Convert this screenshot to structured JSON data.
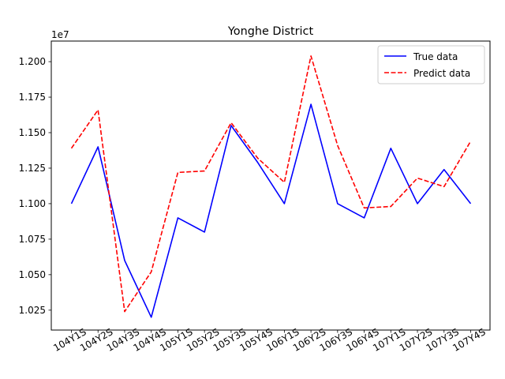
{
  "chart_data": {
    "type": "line",
    "title": "Yonghe District",
    "xlabel": "",
    "ylabel": "",
    "y_offset_label": "1e7",
    "categories": [
      "104Y1S",
      "104Y2S",
      "104Y3S",
      "104Y4S",
      "105Y1S",
      "105Y2S",
      "105Y3S",
      "105Y4S",
      "106Y1S",
      "106Y2S",
      "106Y3S",
      "106Y4S",
      "107Y1S",
      "107Y2S",
      "107Y3S",
      "107Y4S"
    ],
    "ylim": [
      1.011,
      1.2145
    ],
    "yticks": [
      1.025,
      1.05,
      1.075,
      1.1,
      1.125,
      1.15,
      1.175,
      1.2
    ],
    "ytick_labels": [
      "1.025",
      "1.050",
      "1.075",
      "1.100",
      "1.125",
      "1.150",
      "1.175",
      "1.200"
    ],
    "grid": false,
    "legend_position": "upper right",
    "series": [
      {
        "name": "True data",
        "color": "#0000ff",
        "style": "solid",
        "values": [
          1.1,
          1.14,
          1.06,
          1.02,
          1.09,
          1.08,
          1.155,
          1.129,
          1.1,
          1.17,
          1.1,
          1.09,
          1.139,
          1.1,
          1.124,
          1.1
        ]
      },
      {
        "name": "Predict data",
        "color": "#ff0000",
        "style": "dashed",
        "values": [
          1.139,
          1.166,
          1.024,
          1.052,
          1.122,
          1.123,
          1.157,
          1.132,
          1.115,
          1.204,
          1.141,
          1.097,
          1.098,
          1.118,
          1.112,
          1.144
        ]
      }
    ]
  }
}
